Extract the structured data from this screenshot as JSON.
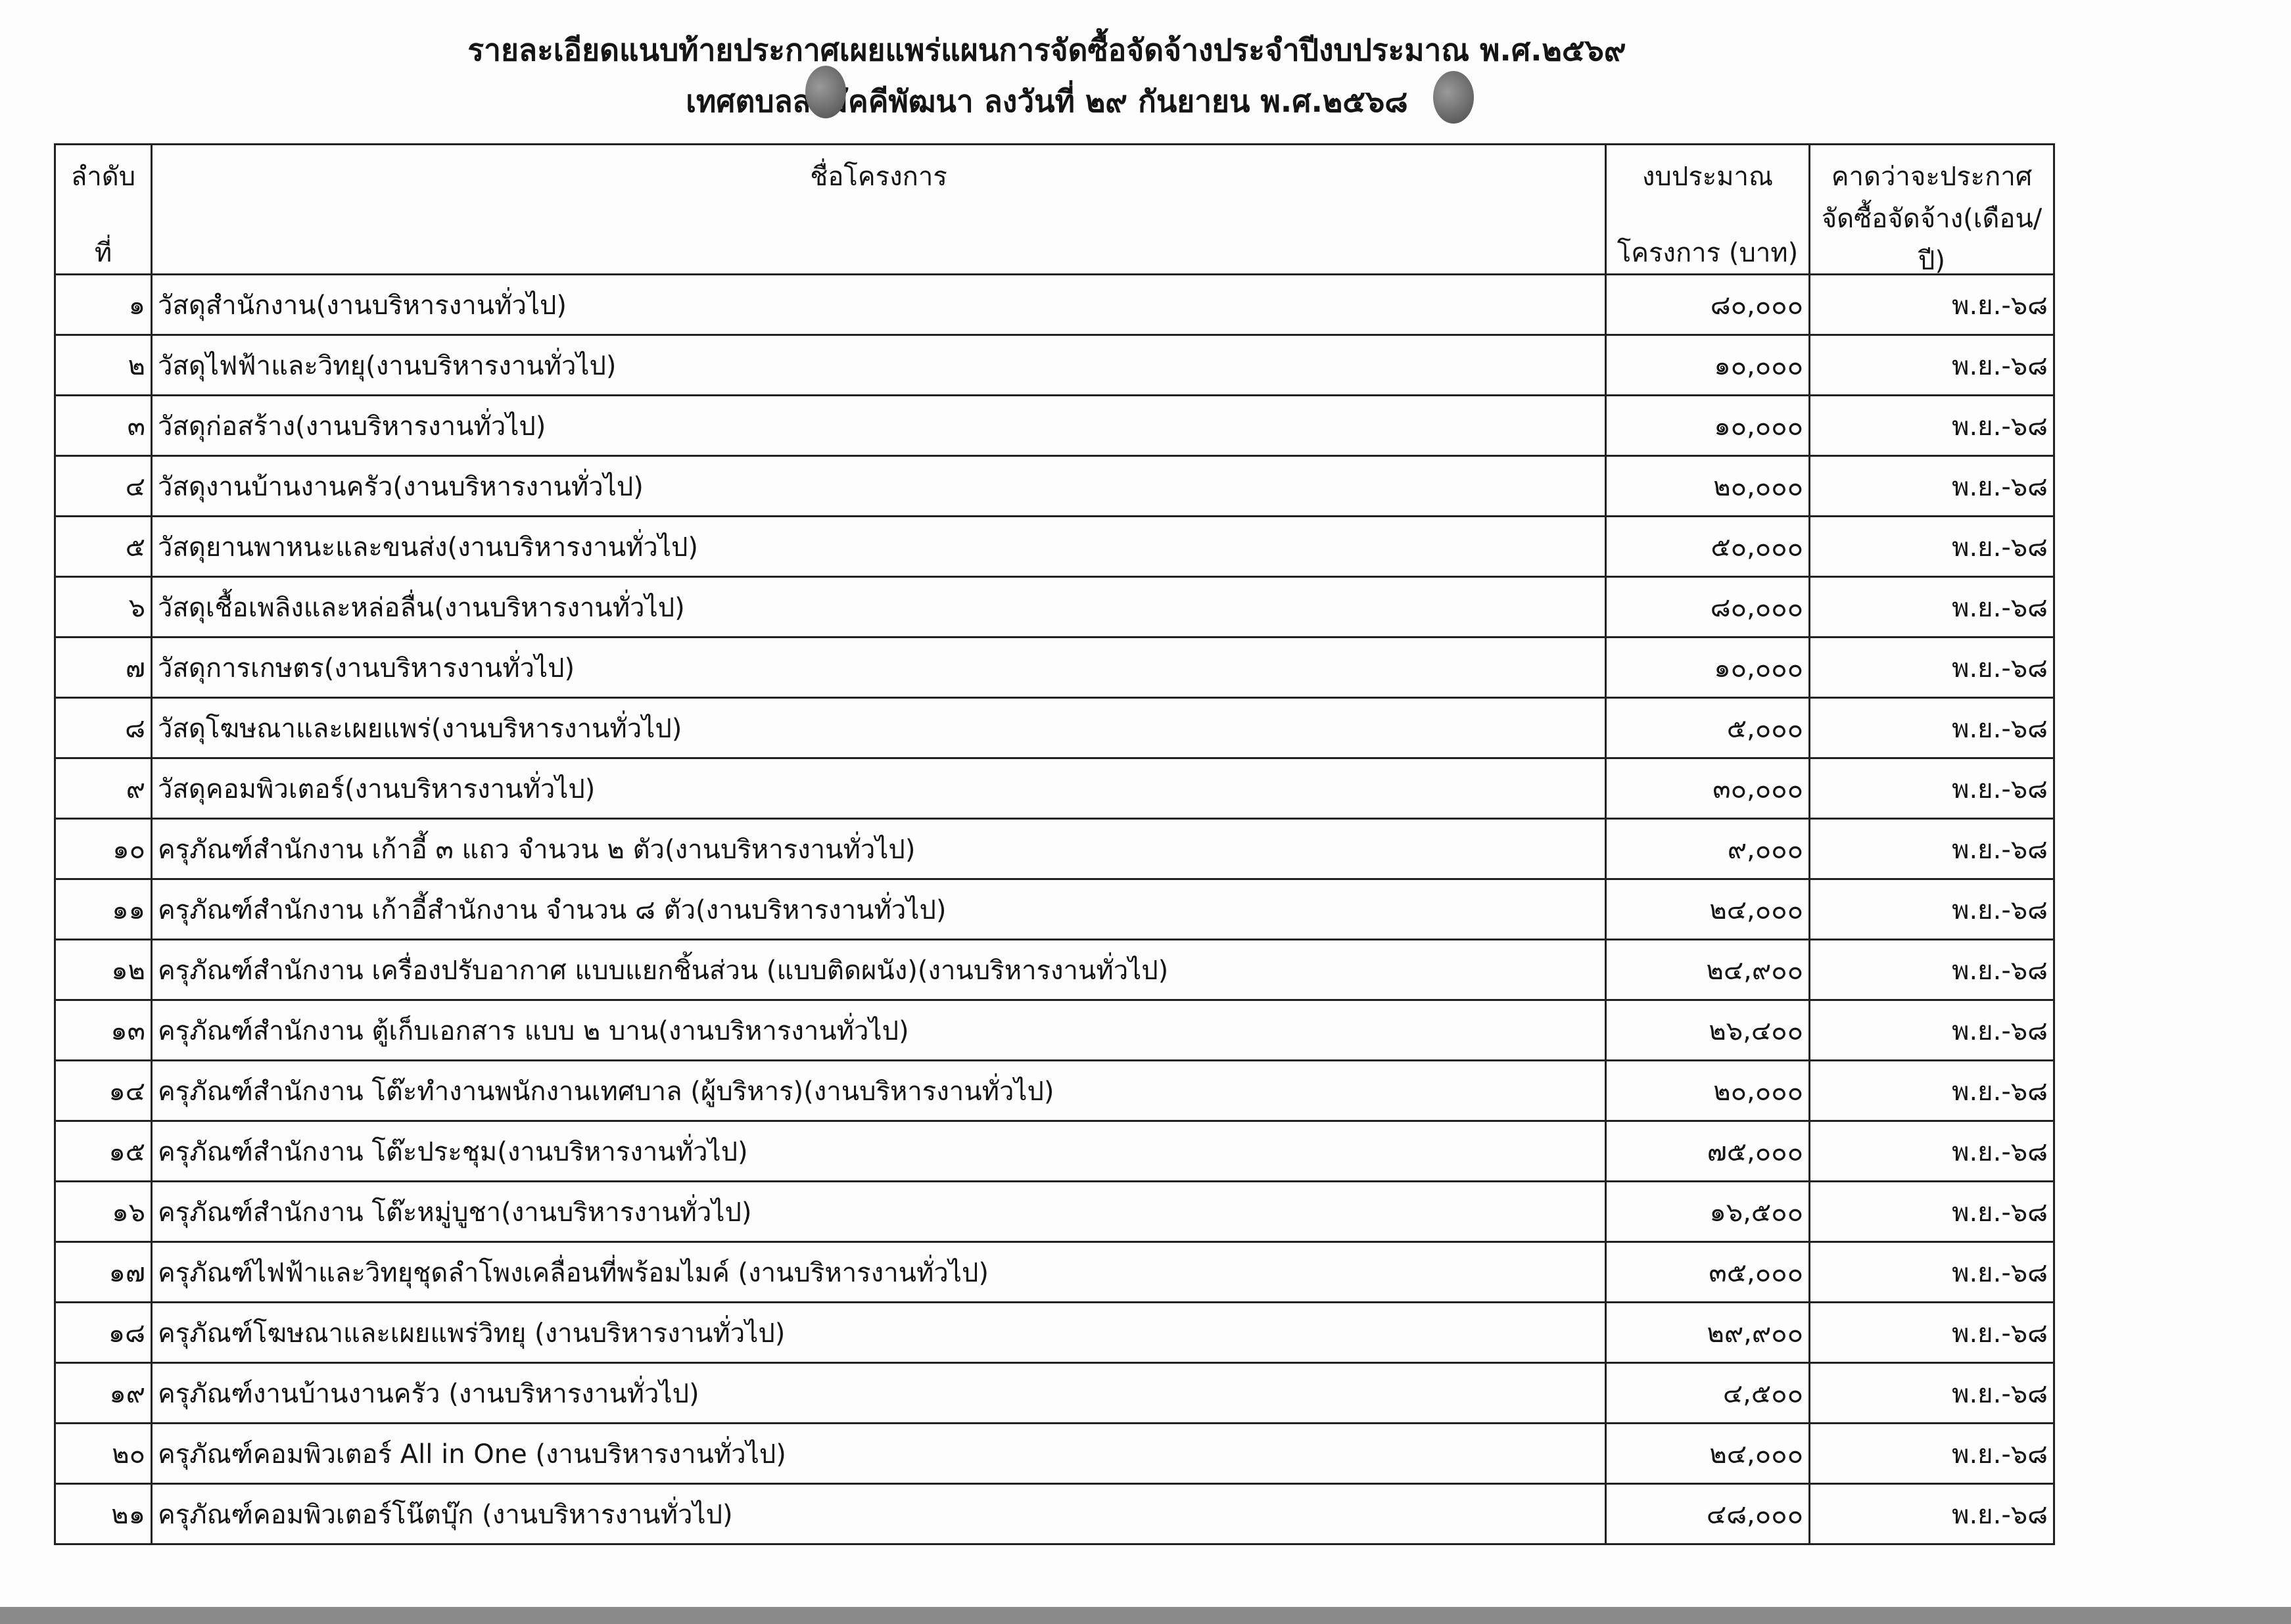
{
  "document": {
    "title": "รายละเอียดแนบท้ายประกาศเผยแพร่แผนการจัดซื้อจัดจ้างประจำปีงบประมาณ พ.ศ.๒๕๖๙",
    "subtitle": "เทศตบลสามัคคีพัฒนา ลงวันที่ ๒๙  กันยายน พ.ศ.๒๕๖๘"
  },
  "table": {
    "headers": {
      "no_line1": "ลำดับ",
      "no_line2": "ที่",
      "name": "ชื่อโครงการ",
      "budget_line1": "งบประมาณ",
      "budget_line2": "โครงการ (บาท)",
      "date_line1": "คาดว่าจะประกาศ",
      "date_line2": "จัดซื้อจัดจ้าง(เดือน/ปี)"
    },
    "rows": [
      {
        "no": "๑",
        "name": "วัสดุสำนักงาน(งานบริหารงานทั่วไป)",
        "budget": "๘๐,๐๐๐",
        "date": "พ.ย.-๖๘"
      },
      {
        "no": "๒",
        "name": "วัสดุไฟฟ้าและวิทยุ(งานบริหารงานทั่วไป)",
        "budget": "๑๐,๐๐๐",
        "date": "พ.ย.-๖๘"
      },
      {
        "no": "๓",
        "name": "วัสดุก่อสร้าง(งานบริหารงานทั่วไป)",
        "budget": "๑๐,๐๐๐",
        "date": "พ.ย.-๖๘"
      },
      {
        "no": "๔",
        "name": "วัสดุงานบ้านงานครัว(งานบริหารงานทั่วไป)",
        "budget": "๒๐,๐๐๐",
        "date": "พ.ย.-๖๘"
      },
      {
        "no": "๕",
        "name": "วัสดุยานพาหนะและขนส่ง(งานบริหารงานทั่วไป)",
        "budget": "๕๐,๐๐๐",
        "date": "พ.ย.-๖๘"
      },
      {
        "no": "๖",
        "name": "วัสดุเชื้อเพลิงและหล่อลื่น(งานบริหารงานทั่วไป)",
        "budget": "๘๐,๐๐๐",
        "date": "พ.ย.-๖๘"
      },
      {
        "no": "๗",
        "name": "วัสดุการเกษตร(งานบริหารงานทั่วไป)",
        "budget": "๑๐,๐๐๐",
        "date": "พ.ย.-๖๘"
      },
      {
        "no": "๘",
        "name": "วัสดุโฆษณาและเผยแพร่(งานบริหารงานทั่วไป)",
        "budget": "๕,๐๐๐",
        "date": "พ.ย.-๖๘"
      },
      {
        "no": "๙",
        "name": "วัสดุคอมพิวเตอร์(งานบริหารงานทั่วไป)",
        "budget": "๓๐,๐๐๐",
        "date": "พ.ย.-๖๘"
      },
      {
        "no": "๑๐",
        "name": "ครุภัณฑ์สำนักงาน เก้าอี้ ๓ แถว จำนวน ๒ ตัว(งานบริหารงานทั่วไป)",
        "budget": "๙,๐๐๐",
        "date": "พ.ย.-๖๘"
      },
      {
        "no": "๑๑",
        "name": "ครุภัณฑ์สำนักงาน เก้าอี้สำนักงาน  จำนวน ๘ ตัว(งานบริหารงานทั่วไป)",
        "budget": "๒๔,๐๐๐",
        "date": "พ.ย.-๖๘"
      },
      {
        "no": "๑๒",
        "name": "ครุภัณฑ์สำนักงาน เครื่องปรับอากาศ แบบแยกชิ้นส่วน (แบบติดผนัง)(งานบริหารงานทั่วไป)",
        "budget": "๒๔,๙๐๐",
        "date": "พ.ย.-๖๘"
      },
      {
        "no": "๑๓",
        "name": "ครุภัณฑ์สำนักงาน ตู้เก็บเอกสาร แบบ ๒ บาน(งานบริหารงานทั่วไป)",
        "budget": "๒๖,๔๐๐",
        "date": "พ.ย.-๖๘"
      },
      {
        "no": "๑๔",
        "name": "ครุภัณฑ์สำนักงาน โต๊ะทำงานพนักงานเทศบาล (ผู้บริหาร)(งานบริหารงานทั่วไป)",
        "budget": "๒๐,๐๐๐",
        "date": "พ.ย.-๖๘"
      },
      {
        "no": "๑๕",
        "name": "ครุภัณฑ์สำนักงาน โต๊ะประชุม(งานบริหารงานทั่วไป)",
        "budget": "๗๕,๐๐๐",
        "date": "พ.ย.-๖๘"
      },
      {
        "no": "๑๖",
        "name": "ครุภัณฑ์สำนักงาน โต๊ะหมู่บูชา(งานบริหารงานทั่วไป)",
        "budget": "๑๖,๕๐๐",
        "date": "พ.ย.-๖๘"
      },
      {
        "no": "๑๗",
        "name": "ครุภัณฑ์ไฟฟ้าและวิทยุชุดลำโพงเคลื่อนที่พร้อมไมค์ (งานบริหารงานทั่วไป)",
        "budget": "๓๕,๐๐๐",
        "date": "พ.ย.-๖๘"
      },
      {
        "no": "๑๘",
        "name": "ครุภัณฑ์โฆษณาและเผยแพร่วิทยุ (งานบริหารงานทั่วไป)",
        "budget": "๒๙,๙๐๐",
        "date": "พ.ย.-๖๘"
      },
      {
        "no": "๑๙",
        "name": "ครุภัณฑ์งานบ้านงานครัว (งานบริหารงานทั่วไป)",
        "budget": "๔,๕๐๐",
        "date": "พ.ย.-๖๘"
      },
      {
        "no": "๒๐",
        "name": "ครุภัณฑ์คอมพิวเตอร์ All in One (งานบริหารงานทั่วไป)",
        "budget": "๒๔,๐๐๐",
        "date": "พ.ย.-๖๘"
      },
      {
        "no": "๒๑",
        "name": "ครุภัณฑ์คอมพิวเตอร์โน๊ตบุ๊ก (งานบริหารงานทั่วไป)",
        "budget": "๔๘,๐๐๐",
        "date": "พ.ย.-๖๘"
      }
    ]
  }
}
